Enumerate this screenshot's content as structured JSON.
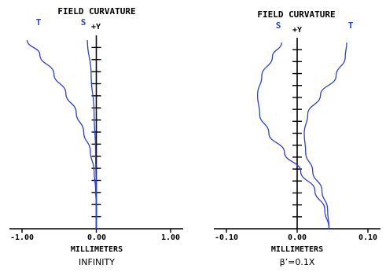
{
  "chart_data": [
    {
      "type": "line",
      "title": "FIELD CURVATURE",
      "xlabel": "MILLIMETERS",
      "subtitle": "INFINITY",
      "y_axis_label": "+Y",
      "xlim": [
        -1.0,
        1.0
      ],
      "ylim": [
        0,
        1
      ],
      "x_ticks": [
        -1.0,
        0.0,
        1.0
      ],
      "x_tick_labels": [
        "-1.00",
        "0.00",
        "1.00"
      ],
      "y_tick_values": [
        0.0625,
        0.125,
        0.1875,
        0.25,
        0.3125,
        0.375,
        0.4375,
        0.5,
        0.5625,
        0.625,
        0.6875,
        0.75,
        0.8125,
        0.875,
        0.9375
      ],
      "grid": false,
      "color": "#2b3fe0",
      "series": [
        {
          "name": "T",
          "points": [
            [
              0,
              0
            ],
            [
              0.005,
              0.1
            ],
            [
              -0.01,
              0.2
            ],
            [
              -0.03,
              0.3
            ],
            [
              -0.08,
              0.4
            ],
            [
              -0.17,
              0.5
            ],
            [
              -0.27,
              0.6
            ],
            [
              -0.41,
              0.7
            ],
            [
              -0.57,
              0.8
            ],
            [
              -0.76,
              0.9
            ],
            [
              -0.93,
              0.975
            ]
          ]
        },
        {
          "name": "S",
          "points": [
            [
              0,
              0
            ],
            [
              -0.002,
              0.2
            ],
            [
              -0.01,
              0.4
            ],
            [
              -0.03,
              0.6
            ],
            [
              -0.07,
              0.8
            ],
            [
              -0.12,
              0.975
            ]
          ]
        }
      ]
    },
    {
      "type": "line",
      "title": "FIELD CURVATURE",
      "xlabel": "MILLIMETERS",
      "subtitle": "β’=0.1X",
      "y_axis_label": "+Y",
      "xlim": [
        -0.1,
        0.1
      ],
      "ylim": [
        0,
        1
      ],
      "x_ticks": [
        -0.1,
        0.0,
        0.1
      ],
      "x_tick_labels": [
        "-0.10",
        "0.00",
        "0.10"
      ],
      "y_tick_values": [
        0.0625,
        0.125,
        0.1875,
        0.25,
        0.3125,
        0.375,
        0.4375,
        0.5,
        0.5625,
        0.625,
        0.6875,
        0.75,
        0.8125,
        0.875,
        0.9375
      ],
      "grid": false,
      "color": "#2b3fe0",
      "series": [
        {
          "name": "T",
          "points": [
            [
              0.045,
              0
            ],
            [
              0.043,
              0.1
            ],
            [
              0.035,
              0.2
            ],
            [
              0.022,
              0.3
            ],
            [
              0.012,
              0.4
            ],
            [
              0.01,
              0.5
            ],
            [
              0.015,
              0.6
            ],
            [
              0.033,
              0.7
            ],
            [
              0.055,
              0.8
            ],
            [
              0.068,
              0.9
            ],
            [
              0.07,
              0.975
            ]
          ]
        },
        {
          "name": "S",
          "points": [
            [
              0.045,
              0
            ],
            [
              0.039,
              0.1
            ],
            [
              0.025,
              0.2
            ],
            [
              0.005,
              0.3
            ],
            [
              -0.018,
              0.4
            ],
            [
              -0.04,
              0.5
            ],
            [
              -0.053,
              0.6
            ],
            [
              -0.056,
              0.7
            ],
            [
              -0.05,
              0.8
            ],
            [
              -0.035,
              0.9
            ],
            [
              -0.022,
              0.975
            ]
          ]
        }
      ]
    }
  ]
}
